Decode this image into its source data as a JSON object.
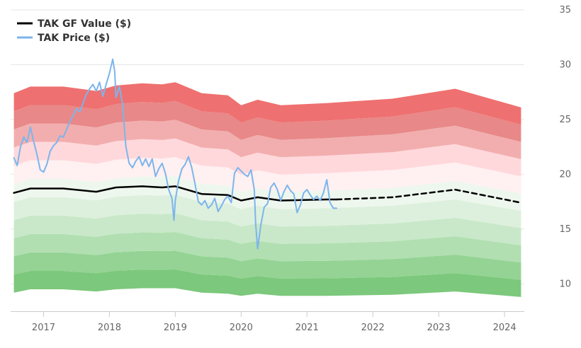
{
  "chart_data": {
    "type": "line",
    "title": "",
    "xlabel": "",
    "ylabel": "",
    "xlim": [
      2016.5,
      2024.3
    ],
    "ylim": [
      7.5,
      35
    ],
    "x_ticks": [
      2017,
      2018,
      2019,
      2020,
      2021,
      2022,
      2023,
      2024
    ],
    "y_ticks": [
      10,
      15,
      20,
      25,
      30,
      35
    ],
    "grid": "horizontal",
    "legend_position": "top-left",
    "legend": [
      {
        "label": "TAK GF Value ($)",
        "color": "#000000",
        "style": "solid"
      },
      {
        "label": "TAK Price ($)",
        "color": "#7cb5ec",
        "style": "solid"
      }
    ],
    "band_x": [
      2016.55,
      2016.8,
      2017.3,
      2017.8,
      2018.1,
      2018.5,
      2018.8,
      2019.0,
      2019.4,
      2019.8,
      2020.0,
      2020.25,
      2020.6,
      2021.3,
      2022.3,
      2023.25,
      2024.25
    ],
    "band_bottom": [
      9.2,
      9.5,
      9.5,
      9.3,
      9.5,
      9.6,
      9.6,
      9.6,
      9.2,
      9.1,
      8.9,
      9.1,
      8.9,
      8.9,
      9.0,
      9.3,
      8.8
    ],
    "band_top": [
      27.4,
      28.0,
      28.0,
      27.6,
      28.1,
      28.3,
      28.2,
      28.4,
      27.4,
      27.2,
      26.3,
      26.8,
      26.3,
      26.5,
      26.9,
      27.8,
      26.1
    ],
    "band_colors": [
      "#7cc87c",
      "#94d394",
      "#b1dfb1",
      "#c9e8c9",
      "#ddf0dd",
      "#eef7ee",
      "#fff0f1",
      "#ffd8dc",
      "#f2aeae",
      "#e88888",
      "#ef7070"
    ],
    "series": [
      {
        "name": "TAK GF Value ($)",
        "color": "#000000",
        "x": [
          2016.55,
          2016.8,
          2017.3,
          2017.8,
          2018.1,
          2018.5,
          2018.8,
          2019.0,
          2019.4,
          2019.8,
          2020.0,
          2020.25,
          2020.6,
          2021.3,
          2021.45
        ],
        "values": [
          18.3,
          18.7,
          18.7,
          18.4,
          18.8,
          18.9,
          18.8,
          18.9,
          18.2,
          18.1,
          17.6,
          17.9,
          17.6,
          17.7,
          17.7
        ]
      },
      {
        "name": "TAK GF Value ($) estimate",
        "color": "#000000",
        "dashed": true,
        "x": [
          2021.45,
          2022.3,
          2023.25,
          2024.25
        ],
        "values": [
          17.7,
          17.9,
          18.6,
          17.4
        ]
      },
      {
        "name": "TAK Price ($)",
        "color": "#7cb5ec",
        "x": [
          2016.55,
          2016.6,
          2016.65,
          2016.7,
          2016.75,
          2016.8,
          2016.85,
          2016.9,
          2016.95,
          2017.0,
          2017.05,
          2017.1,
          2017.15,
          2017.2,
          2017.25,
          2017.3,
          2017.35,
          2017.4,
          2017.45,
          2017.5,
          2017.55,
          2017.6,
          2017.65,
          2017.7,
          2017.75,
          2017.8,
          2017.85,
          2017.9,
          2017.95,
          2018.0,
          2018.05,
          2018.08,
          2018.1,
          2018.15,
          2018.2,
          2018.25,
          2018.3,
          2018.35,
          2018.4,
          2018.45,
          2018.5,
          2018.55,
          2018.6,
          2018.65,
          2018.7,
          2018.75,
          2018.8,
          2018.85,
          2018.9,
          2018.95,
          2018.98,
          2019.0,
          2019.05,
          2019.1,
          2019.15,
          2019.2,
          2019.25,
          2019.3,
          2019.35,
          2019.4,
          2019.45,
          2019.5,
          2019.55,
          2019.6,
          2019.65,
          2019.7,
          2019.75,
          2019.8,
          2019.85,
          2019.9,
          2019.95,
          2020.0,
          2020.05,
          2020.1,
          2020.15,
          2020.2,
          2020.22,
          2020.25,
          2020.3,
          2020.35,
          2020.4,
          2020.45,
          2020.5,
          2020.55,
          2020.6,
          2020.65,
          2020.7,
          2020.75,
          2020.8,
          2020.85,
          2020.9,
          2020.95,
          2021.0,
          2021.05,
          2021.1,
          2021.15,
          2021.2,
          2021.25,
          2021.3,
          2021.35,
          2021.4,
          2021.45
        ],
        "values": [
          21.5,
          20.8,
          22.5,
          23.4,
          22.9,
          24.3,
          23.0,
          21.8,
          20.4,
          20.2,
          20.9,
          22.1,
          22.6,
          22.9,
          23.5,
          23.4,
          24.1,
          24.8,
          25.4,
          26.0,
          25.7,
          26.5,
          27.3,
          27.8,
          28.2,
          27.6,
          28.4,
          27.1,
          28.2,
          29.2,
          30.5,
          29.4,
          27.0,
          28.0,
          26.4,
          22.5,
          21.0,
          20.6,
          21.2,
          21.6,
          20.8,
          21.4,
          20.7,
          21.4,
          19.8,
          20.5,
          21.0,
          20.1,
          18.6,
          17.8,
          15.8,
          17.6,
          19.4,
          20.5,
          20.9,
          21.6,
          20.6,
          19.1,
          17.5,
          17.2,
          17.6,
          16.9,
          17.2,
          17.8,
          16.6,
          17.1,
          17.7,
          18.0,
          17.4,
          20.1,
          20.6,
          20.3,
          20.0,
          19.8,
          20.4,
          18.6,
          15.5,
          13.2,
          15.4,
          17.0,
          17.3,
          18.8,
          19.2,
          18.6,
          17.6,
          18.4,
          19.0,
          18.5,
          18.2,
          16.5,
          17.2,
          18.3,
          18.6,
          18.1,
          17.7,
          18.0,
          17.6,
          18.3,
          19.5,
          17.4,
          16.9,
          16.9
        ]
      }
    ]
  }
}
